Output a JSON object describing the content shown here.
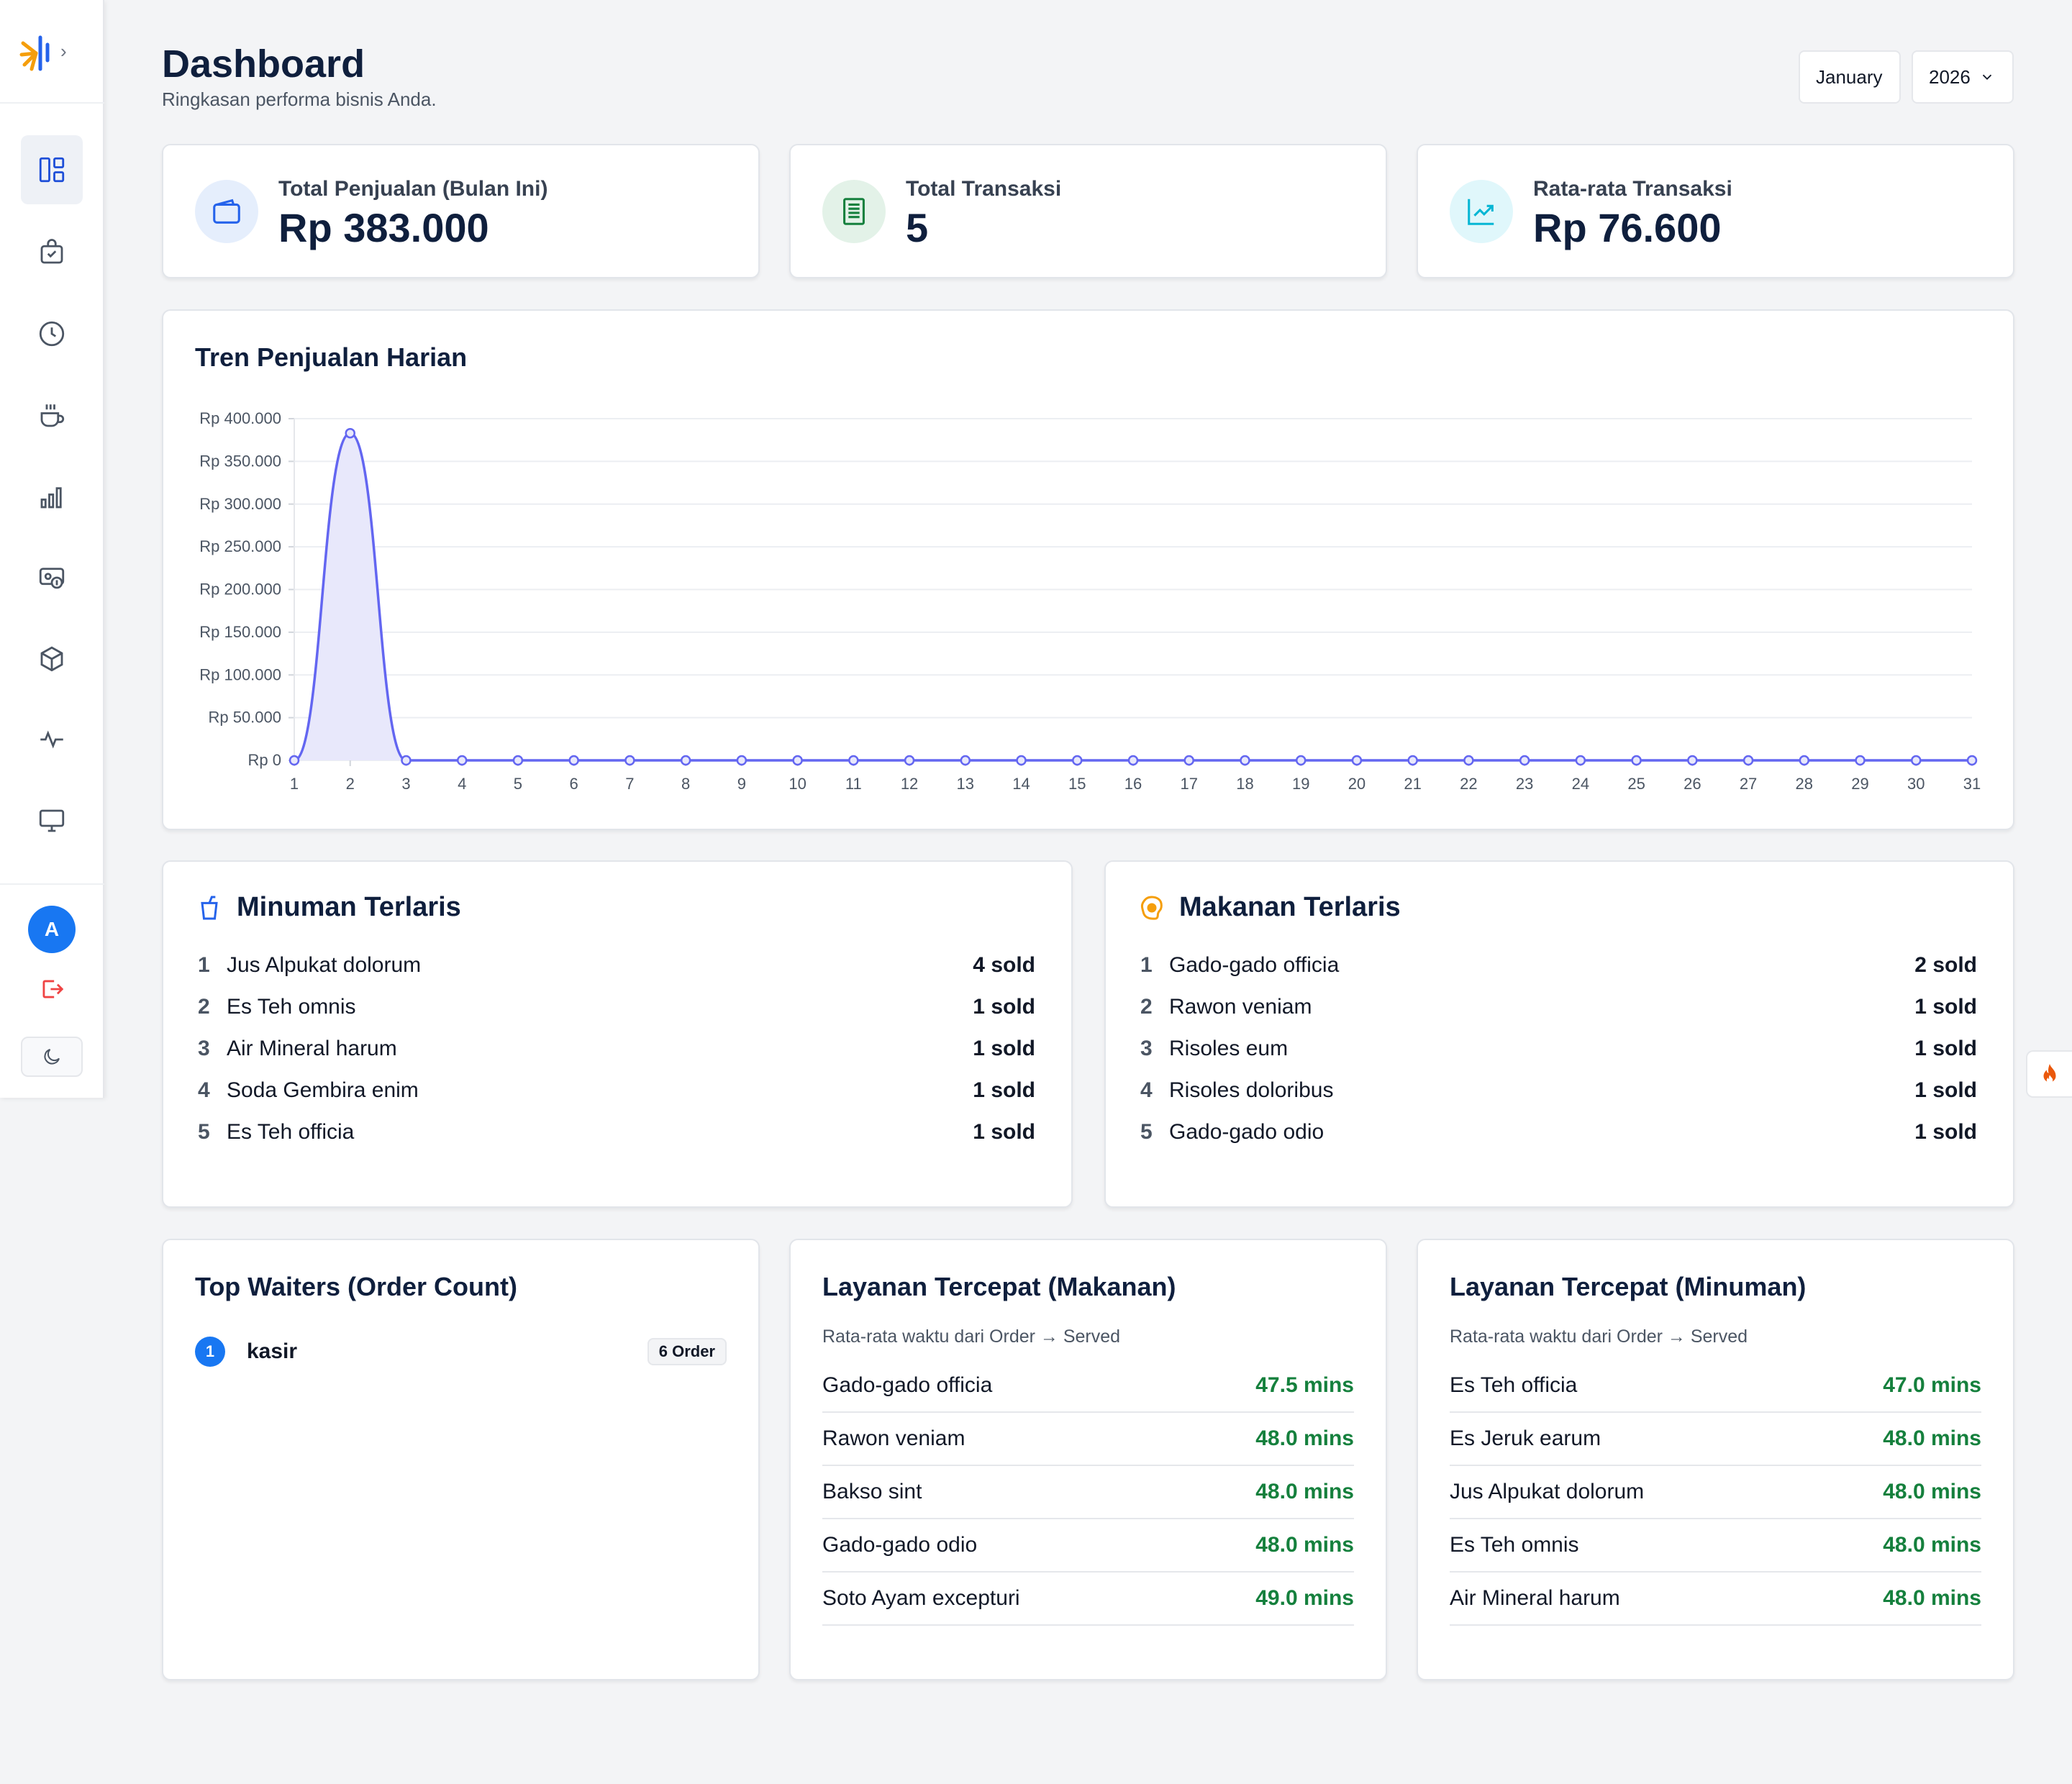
{
  "header": {
    "title": "Dashboard",
    "subtitle": "Ringkasan performa bisnis Anda.",
    "month": "January",
    "year": "2026"
  },
  "sidebar": {
    "items": [
      {
        "name": "dashboard",
        "icon": "layout-icon"
      },
      {
        "name": "orders",
        "icon": "shopping-bag-check-icon"
      },
      {
        "name": "history",
        "icon": "clock-icon"
      },
      {
        "name": "menu",
        "icon": "coffee-cup-icon"
      },
      {
        "name": "reports",
        "icon": "bar-chart-icon"
      },
      {
        "name": "finance",
        "icon": "money-icon"
      },
      {
        "name": "inventory",
        "icon": "box-icon"
      },
      {
        "name": "activity",
        "icon": "activity-icon"
      },
      {
        "name": "display",
        "icon": "monitor-icon"
      }
    ],
    "avatar_initial": "A"
  },
  "stats": [
    {
      "label": "Total Penjualan (Bulan Ini)",
      "value": "Rp 383.000",
      "icon": "wallet-icon",
      "color": "#2563eb"
    },
    {
      "label": "Total Transaksi",
      "value": "5",
      "icon": "receipt-icon",
      "color": "#15803d"
    },
    {
      "label": "Rata-rata Transaksi",
      "value": "Rp 76.600",
      "icon": "trend-up-icon",
      "color": "#06b6d4"
    }
  ],
  "chart": {
    "title": "Tren Penjualan Harian"
  },
  "chart_data": {
    "type": "area",
    "title": "Tren Penjualan Harian",
    "x": [
      1,
      2,
      3,
      4,
      5,
      6,
      7,
      8,
      9,
      10,
      11,
      12,
      13,
      14,
      15,
      16,
      17,
      18,
      19,
      20,
      21,
      22,
      23,
      24,
      25,
      26,
      27,
      28,
      29,
      30,
      31
    ],
    "series": [
      {
        "values": [
          0,
          383000,
          0,
          0,
          0,
          0,
          0,
          0,
          0,
          0,
          0,
          0,
          0,
          0,
          0,
          0,
          0,
          0,
          0,
          0,
          0,
          0,
          0,
          0,
          0,
          0,
          0,
          0,
          0,
          0,
          0
        ]
      }
    ],
    "ylim": [
      0,
      400000
    ],
    "yticks": [
      "Rp 0",
      "Rp 50.000",
      "Rp 100.000",
      "Rp 150.000",
      "Rp 200.000",
      "Rp 250.000",
      "Rp 300.000",
      "Rp 350.000",
      "Rp 400.000"
    ],
    "line_color": "#6366f1",
    "fill_color": "#e8e8fb",
    "grid": true
  },
  "drinks": {
    "title": "Minuman Terlaris",
    "items": [
      {
        "rank": "1",
        "name": "Jus Alpukat dolorum",
        "sold": "4 sold"
      },
      {
        "rank": "2",
        "name": "Es Teh omnis",
        "sold": "1 sold"
      },
      {
        "rank": "3",
        "name": "Air Mineral harum",
        "sold": "1 sold"
      },
      {
        "rank": "4",
        "name": "Soda Gembira enim",
        "sold": "1 sold"
      },
      {
        "rank": "5",
        "name": "Es Teh officia",
        "sold": "1 sold"
      }
    ]
  },
  "foods": {
    "title": "Makanan Terlaris",
    "items": [
      {
        "rank": "1",
        "name": "Gado-gado officia",
        "sold": "2 sold"
      },
      {
        "rank": "2",
        "name": "Rawon veniam",
        "sold": "1 sold"
      },
      {
        "rank": "3",
        "name": "Risoles eum",
        "sold": "1 sold"
      },
      {
        "rank": "4",
        "name": "Risoles doloribus",
        "sold": "1 sold"
      },
      {
        "rank": "5",
        "name": "Gado-gado odio",
        "sold": "1 sold"
      }
    ]
  },
  "waiters": {
    "title": "Top Waiters (Order Count)",
    "items": [
      {
        "rank": "1",
        "name": "kasir",
        "badge": "6 Order"
      }
    ]
  },
  "fast_food": {
    "title": "Layanan Tercepat (Makanan)",
    "subtitle": "Rata-rata waktu dari Order → Served",
    "items": [
      {
        "name": "Gado-gado officia",
        "time": "47.5 mins"
      },
      {
        "name": "Rawon veniam",
        "time": "48.0 mins"
      },
      {
        "name": "Bakso sint",
        "time": "48.0 mins"
      },
      {
        "name": "Gado-gado odio",
        "time": "48.0 mins"
      },
      {
        "name": "Soto Ayam excepturi",
        "time": "49.0 mins"
      }
    ]
  },
  "fast_drink": {
    "title": "Layanan Tercepat (Minuman)",
    "subtitle": "Rata-rata waktu dari Order → Served",
    "items": [
      {
        "name": "Es Teh officia",
        "time": "47.0 mins"
      },
      {
        "name": "Es Jeruk earum",
        "time": "48.0 mins"
      },
      {
        "name": "Jus Alpukat dolorum",
        "time": "48.0 mins"
      },
      {
        "name": "Es Teh omnis",
        "time": "48.0 mins"
      },
      {
        "name": "Air Mineral harum",
        "time": "48.0 mins"
      }
    ]
  }
}
